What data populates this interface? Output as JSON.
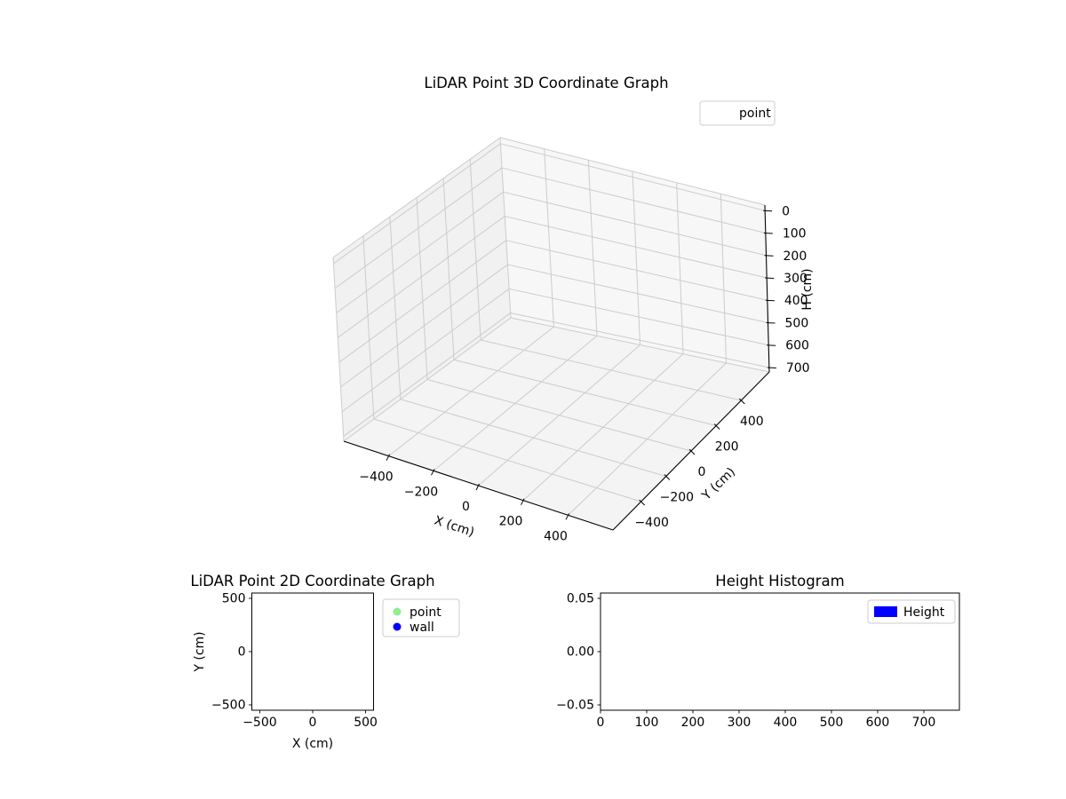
{
  "figure": {
    "background": "#ffffff"
  },
  "chart_data": [
    {
      "type": "scatter3d",
      "title": "LiDAR Point 3D Coordinate Graph",
      "xlabel": "X (cm)",
      "ylabel": "Y (cm)",
      "zlabel": "H (cm)",
      "xticks": [
        -400,
        -200,
        0,
        200,
        400
      ],
      "xtick_labels": [
        "−400",
        "−200",
        "0",
        "200",
        "400"
      ],
      "yticks": [
        -400,
        -200,
        0,
        200,
        400
      ],
      "ytick_labels": [
        "−400",
        "−200",
        "0",
        "200",
        "400"
      ],
      "zticks": [
        0,
        100,
        200,
        300,
        400,
        500,
        600,
        700
      ],
      "ztick_labels": [
        "0",
        "100",
        "200",
        "300",
        "400",
        "500",
        "600",
        "700"
      ],
      "xlim": [
        -600,
        600
      ],
      "ylim": [
        -625,
        625
      ],
      "zlim": [
        -25,
        720
      ],
      "zaxis_inverted": true,
      "grid": true,
      "legend_position": "upper right",
      "series": [
        {
          "name": "point",
          "points": []
        }
      ]
    },
    {
      "type": "scatter",
      "title": "LiDAR Point 2D Coordinate Graph",
      "xlabel": "X (cm)",
      "ylabel": "Y (cm)",
      "xticks": [
        -500,
        0,
        500
      ],
      "xtick_labels": [
        "−500",
        "0",
        "500"
      ],
      "yticks": [
        -500,
        0,
        500
      ],
      "ytick_labels": [
        "−500",
        "0",
        "500"
      ],
      "xlim": [
        -575,
        575
      ],
      "ylim": [
        -550,
        550
      ],
      "grid": false,
      "legend_position": "outside upper right",
      "series": [
        {
          "name": "point",
          "color": "#90EE90",
          "points": []
        },
        {
          "name": "wall",
          "color": "#0000FF",
          "points": []
        }
      ]
    },
    {
      "type": "bar",
      "title": "Height Histogram",
      "xlabel": "",
      "ylabel": "",
      "xticks": [
        0,
        100,
        200,
        300,
        400,
        500,
        600,
        700
      ],
      "xtick_labels": [
        "0",
        "100",
        "200",
        "300",
        "400",
        "500",
        "600",
        "700"
      ],
      "yticks": [
        -0.05,
        0,
        0.05
      ],
      "ytick_labels": [
        "−0.05",
        "0.00",
        "0.05"
      ],
      "xlim": [
        0,
        777
      ],
      "ylim": [
        -0.055,
        0.055
      ],
      "grid": false,
      "legend_position": "upper right",
      "series": [
        {
          "name": "Height",
          "color": "#0000FF",
          "values": []
        }
      ]
    }
  ]
}
